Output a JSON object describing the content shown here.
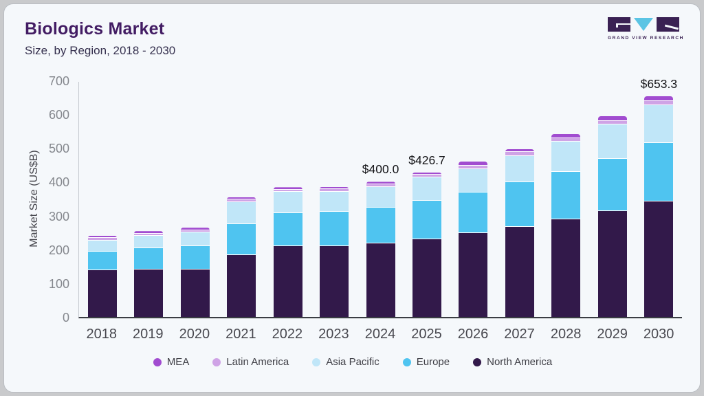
{
  "header": {
    "title": "Biologics Market",
    "subtitle": "Size, by Region, 2018 - 2030"
  },
  "logo": {
    "text": "GRAND VIEW RESEARCH",
    "mark_color": "#3a2153",
    "triangle_color": "#5bc4e4"
  },
  "chart_data": {
    "type": "bar",
    "stacked": true,
    "title": "Biologics Market",
    "subtitle": "Size, by Region, 2018 - 2030",
    "xlabel": "",
    "ylabel": "Market Size (US$B)",
    "ylim": [
      0,
      700
    ],
    "yticks": [
      0,
      100,
      200,
      300,
      400,
      500,
      600,
      700
    ],
    "grid": false,
    "legend_position": "bottom",
    "categories": [
      "2018",
      "2019",
      "2020",
      "2021",
      "2022",
      "2023",
      "2024",
      "2025",
      "2026",
      "2027",
      "2028",
      "2029",
      "2030"
    ],
    "series": [
      {
        "name": "North America",
        "color": "#32194a",
        "values": [
          138,
          141,
          140,
          184,
          209,
          209,
          218,
          230,
          248,
          267,
          288,
          314,
          342
        ]
      },
      {
        "name": "Europe",
        "color": "#4fc4f0",
        "values": [
          55,
          63,
          70,
          90,
          99,
          102,
          105,
          114,
          121,
          132,
          142,
          154,
          172
        ]
      },
      {
        "name": "Asia Pacific",
        "color": "#c0e6f8",
        "values": [
          33,
          36,
          40,
          66,
          62,
          60,
          61,
          70,
          68,
          77,
          88,
          101,
          112
        ]
      },
      {
        "name": "Latin America",
        "color": "#cfa3e6",
        "values": [
          5.5,
          5,
          5.5,
          6,
          5.5,
          6,
          9,
          7,
          10,
          12,
          12,
          12,
          13
        ]
      },
      {
        "name": "MEA",
        "color": "#a14cd0",
        "values": [
          5.5,
          5,
          5.5,
          6,
          5.5,
          6,
          7,
          5.7,
          12,
          9,
          11,
          13,
          14.3
        ]
      }
    ],
    "totals": [
      237,
      250,
      261,
      352,
      381,
      383,
      400.0,
      426.7,
      459,
      497,
      541,
      594,
      653.3
    ],
    "bar_labels": [
      {
        "category": "2024",
        "label": "$400.0"
      },
      {
        "category": "2025",
        "label": "$426.7"
      },
      {
        "category": "2030",
        "label": "$653.3"
      }
    ],
    "legend_order": [
      "MEA",
      "Latin America",
      "Asia Pacific",
      "Europe",
      "North America"
    ]
  }
}
